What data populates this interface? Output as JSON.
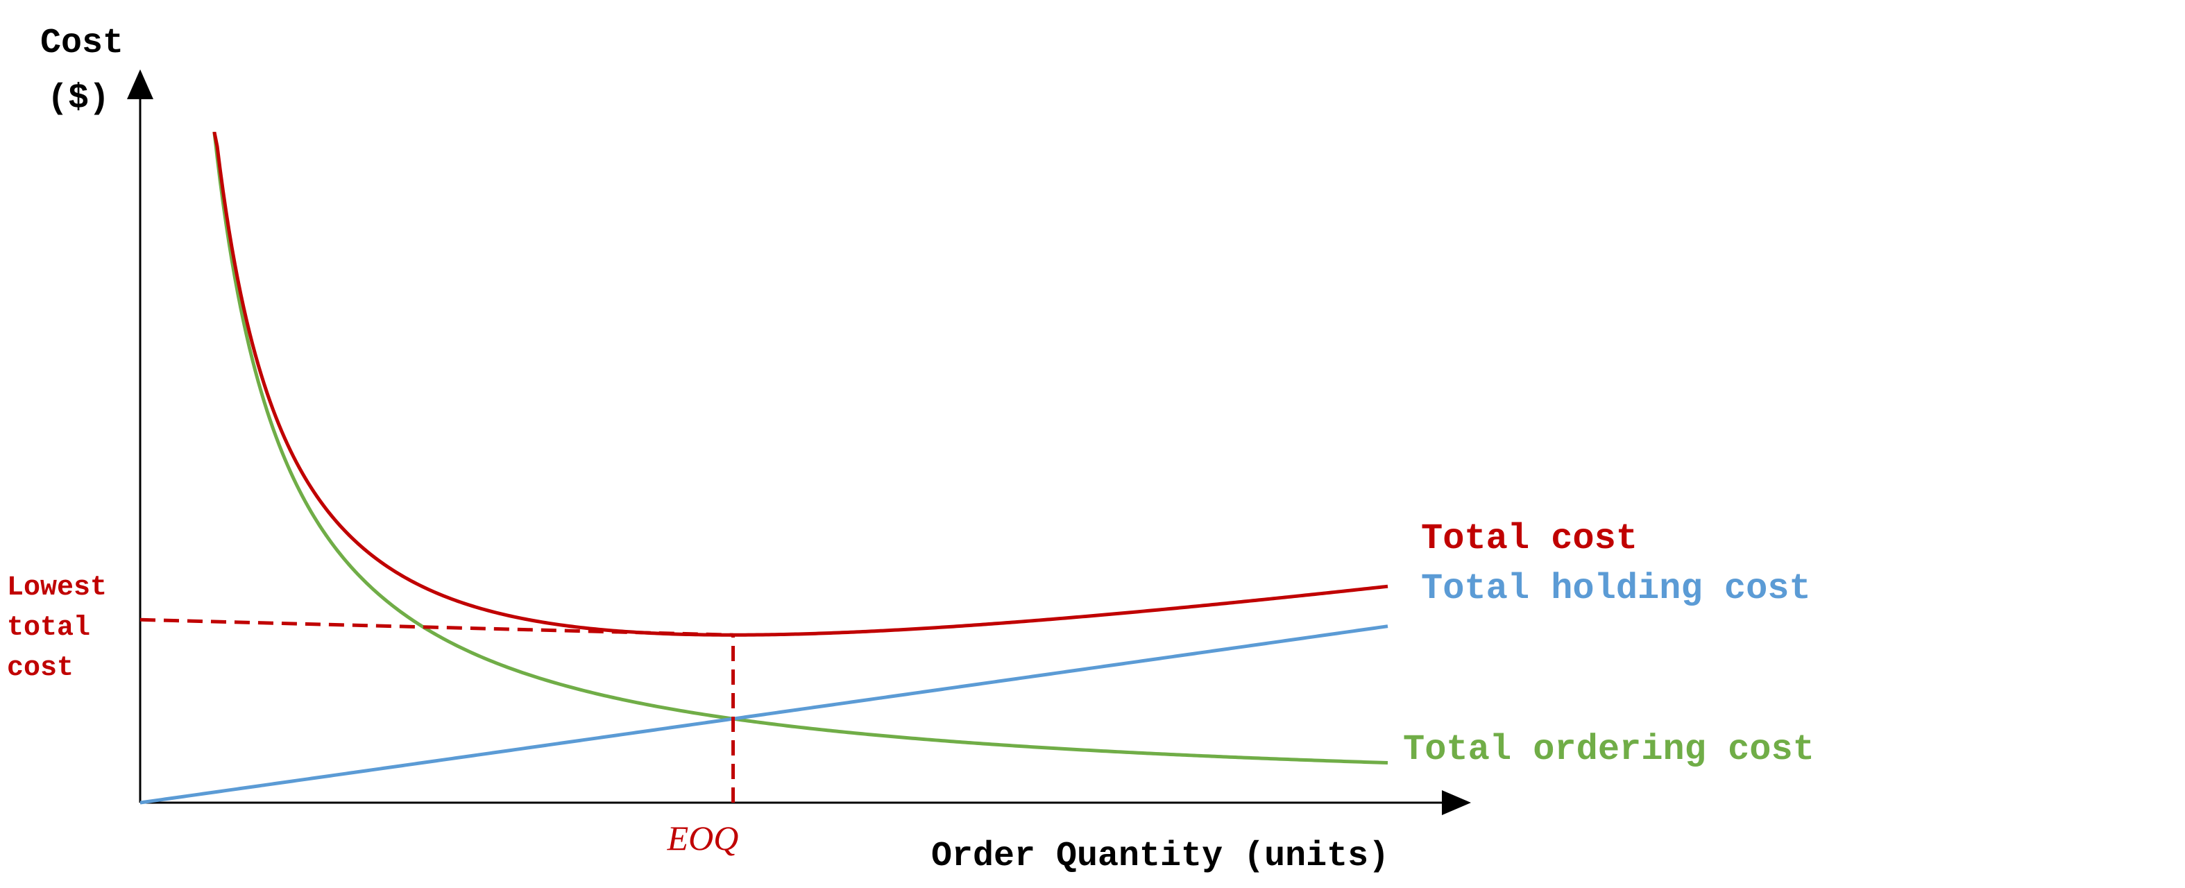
{
  "chart_data": {
    "type": "line",
    "ylabel": "Cost ($)",
    "ylabel_lines": [
      "Cost",
      "($)"
    ],
    "xlabel": "Order Quantity (units)",
    "xmarker": {
      "label": "EOQ",
      "value": 1
    },
    "ymarker": {
      "label": "Lowest total cost",
      "label_lines": [
        "Lowest",
        "total",
        "cost"
      ]
    },
    "xlim": [
      0,
      2.2
    ],
    "ylim": [
      0,
      4
    ],
    "ticks_shown": false,
    "grid": false,
    "legend": "inline-right",
    "series": [
      {
        "key": "total",
        "name": "Total cost",
        "color": "#c00000",
        "model": "ordering+holding"
      },
      {
        "key": "holding",
        "name": "Total holding cost",
        "color": "#5b9bd5",
        "model": "linear",
        "slope": 0.5
      },
      {
        "key": "ordering",
        "name": "Total ordering cost",
        "color": "#70ad47",
        "model": "reciprocal",
        "constant": 0.5
      }
    ]
  }
}
